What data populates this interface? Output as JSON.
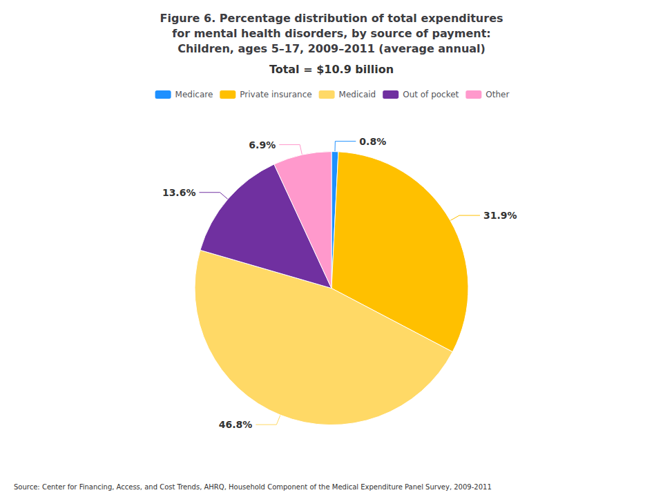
{
  "chart_data": {
    "type": "pie",
    "title": "Figure 6. Percentage distribution of total expenditures\nfor mental health disorders, by source of payment:\nChildren, ages 5–17, 2009–2011 (average annual)",
    "categories": [
      "Medicare",
      "Private insurance",
      "Medicaid",
      "Out of pocket",
      "Other"
    ],
    "values": [
      0.8,
      31.9,
      46.8,
      13.6,
      6.9
    ],
    "value_labels": [
      "0.8%",
      "31.9%",
      "46.8%",
      "13.6%",
      "6.9%"
    ],
    "colors": [
      "#1E90FF",
      "#FFC000",
      "#FFD966",
      "#7030A0",
      "#FF99CC"
    ],
    "data_labels": true,
    "legend": "top",
    "annotations": [
      "Total = $10.9 billion",
      "Source: Center for Financing, Access, and Cost Trends, AHRQ, Household Component of the Medical Expenditure Panel Survey, 2009-2011"
    ]
  }
}
